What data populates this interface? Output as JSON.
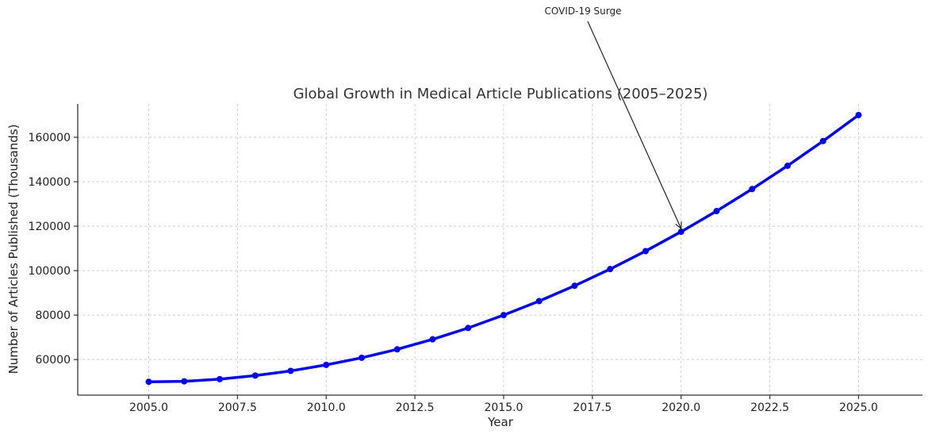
{
  "chart_data": {
    "type": "line",
    "title": "Global Growth in Medical Article Publications (2005–2025)",
    "xlabel": "Year",
    "ylabel": "Number of Articles Published (Thousands)",
    "xlim": [
      2003.0,
      2026.8
    ],
    "ylim": [
      44000,
      175000
    ],
    "xticks": [
      2005.0,
      2007.5,
      2010.0,
      2012.5,
      2015.0,
      2017.5,
      2020.0,
      2022.5,
      2025.0
    ],
    "xtick_labels": [
      "2005.0",
      "2007.5",
      "2010.0",
      "2012.5",
      "2015.0",
      "2017.5",
      "2020.0",
      "2022.5",
      "2025.0"
    ],
    "yticks": [
      60000,
      80000,
      100000,
      120000,
      140000,
      160000
    ],
    "ytick_labels": [
      "60000",
      "80000",
      "100000",
      "120000",
      "140000",
      "160000"
    ],
    "grid": true,
    "series": [
      {
        "color": "#0000ee",
        "marker": "circle",
        "x": [
          2005,
          2006,
          2007,
          2008,
          2009,
          2010,
          2011,
          2012,
          2013,
          2014,
          2015,
          2016,
          2017,
          2018,
          2019,
          2020,
          2021,
          2022,
          2023,
          2024,
          2025
        ],
        "values": [
          50000,
          50200,
          51200,
          52800,
          54900,
          57600,
          60800,
          64600,
          69100,
          74200,
          80000,
          86300,
          93200,
          100700,
          108800,
          117500,
          126800,
          136700,
          147200,
          158300,
          170000
        ]
      }
    ],
    "annotations": [
      {
        "text": "COVID-19 Surge",
        "x": 2020,
        "y": 117500
      }
    ]
  }
}
